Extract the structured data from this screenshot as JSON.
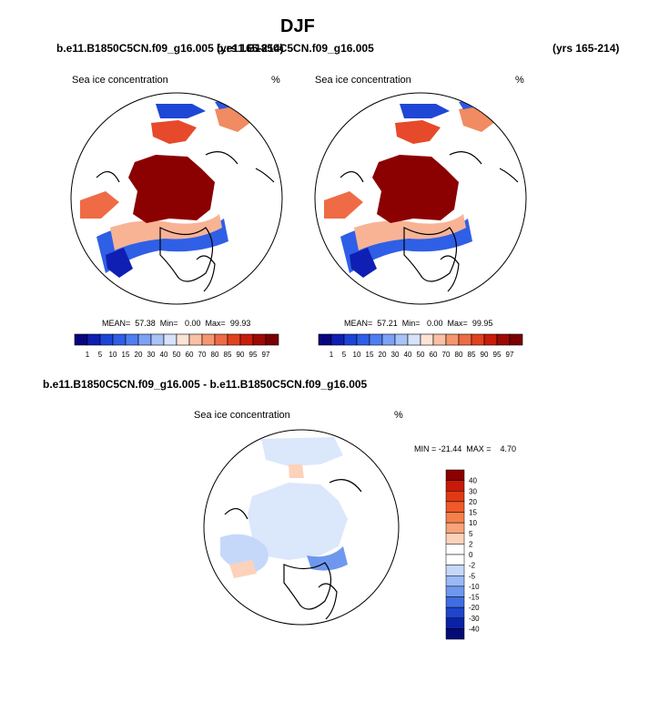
{
  "page": {
    "season": "DJF",
    "run_left": "b.e11.B1850C5CN.f09_g16.005 (yrs 165-214)",
    "run_right": "b.e11.B1850C5CN.f09_g16.005",
    "run_right_years": "(yrs 165-214)",
    "diff_title": "b.e11.B1850C5CN.f09_g16.005 - b.e11.B1850C5CN.f09_g16.005"
  },
  "panels": [
    {
      "variable": "Sea ice concentration",
      "units": "%",
      "stats": "MEAN=  57.38  Min=   0.00  Max=  99.93"
    },
    {
      "variable": "Sea ice concentration",
      "units": "%",
      "stats": "MEAN=  57.21  Min=   0.00  Max=  99.95"
    }
  ],
  "diff_panel": {
    "variable": "Sea ice concentration",
    "units": "%",
    "stats": "MIN = -21.44  MAX =    4.70"
  },
  "colorbar_abs": {
    "labels": [
      "1",
      "5",
      "10",
      "15",
      "20",
      "30",
      "40",
      "50",
      "60",
      "70",
      "80",
      "85",
      "90",
      "95",
      "97"
    ],
    "colors": [
      "#08067d",
      "#0f1fb3",
      "#1d44d8",
      "#2e5fe8",
      "#4f7ef2",
      "#7da1f5",
      "#a9c3f8",
      "#d6e3fb",
      "#fde3d6",
      "#fbc0a5",
      "#f69670",
      "#ef6b45",
      "#e2411f",
      "#c81d0b",
      "#9e0a02",
      "#7a0000"
    ]
  },
  "colorbar_diff": {
    "labels": [
      "40",
      "30",
      "20",
      "15",
      "10",
      "5",
      "2",
      "0",
      "-2",
      "-5",
      "-10",
      "-15",
      "-20",
      "-30",
      "-40"
    ],
    "colors": [
      "#8b0000",
      "#c81a08",
      "#e03a14",
      "#ef5a2a",
      "#f6804a",
      "#f9a37a",
      "#fdd2ba",
      "#ffffff",
      "#ffffff",
      "#c6d8fa",
      "#9ab9f5",
      "#6e98ee",
      "#3f6ee3",
      "#1f45cc",
      "#0b22a6",
      "#050b76"
    ]
  }
}
